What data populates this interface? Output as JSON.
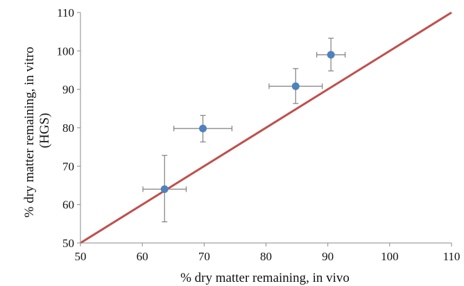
{
  "chart_data": {
    "type": "scatter",
    "xlabel": "% dry matter remaining, in vivo",
    "ylabel_lines": [
      "% dry matter remaining, in vitro",
      "(HGS)"
    ],
    "xlim": [
      50,
      110
    ],
    "ylim": [
      50,
      110
    ],
    "x_ticks": [
      50,
      60,
      70,
      80,
      90,
      100,
      110
    ],
    "y_ticks": [
      50,
      60,
      70,
      80,
      90,
      100,
      110
    ],
    "grid": false,
    "points": [
      {
        "x": 63.6,
        "y": 64.0,
        "xerr": 3.5,
        "yerr_low": 8.5,
        "yerr_high": 8.8
      },
      {
        "x": 69.8,
        "y": 79.8,
        "xerr": 4.7,
        "yerr_low": 3.5,
        "yerr_high": 3.4
      },
      {
        "x": 84.8,
        "y": 90.8,
        "xerr": 4.3,
        "yerr_low": 4.5,
        "yerr_high": 4.6
      },
      {
        "x": 90.5,
        "y": 99.0,
        "xerr": 2.3,
        "yerr_low": 4.2,
        "yerr_high": 4.3
      }
    ],
    "reference_line": {
      "x": [
        50,
        110
      ],
      "y": [
        50,
        110
      ]
    },
    "colors": {
      "point": "#4f81bd",
      "reference_line": "#c0504d",
      "error_bar": "#7f7f7f",
      "axis": "#888888"
    }
  }
}
